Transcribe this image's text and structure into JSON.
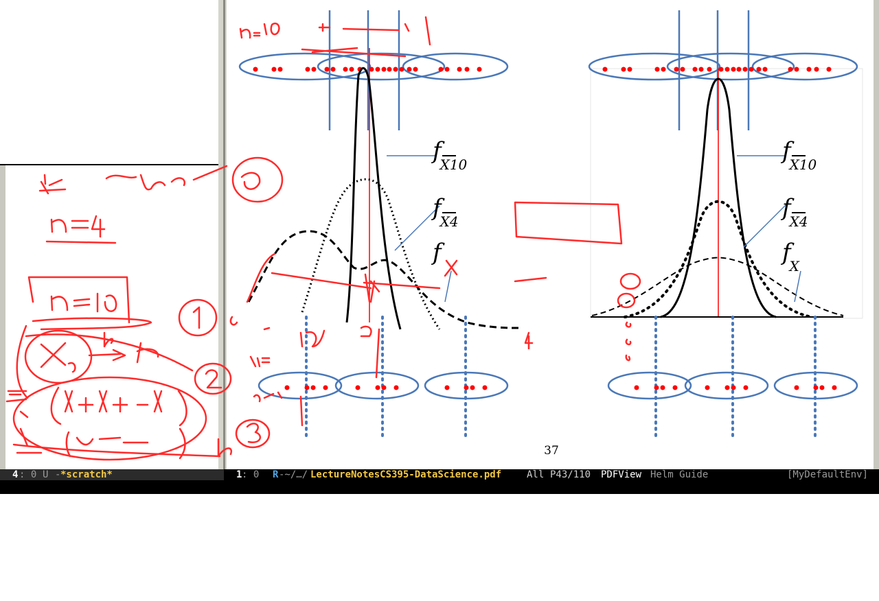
{
  "figure": {
    "page_number": "37",
    "left_panel_labels": [
      {
        "f": "f",
        "sub": "X10"
      },
      {
        "f": "f",
        "sub": "X4"
      },
      {
        "f": "f",
        "sub": ""
      }
    ],
    "right_panel_labels": [
      {
        "f": "f",
        "sub": "X10"
      },
      {
        "f": "f",
        "sub": "X4"
      },
      {
        "f": "f",
        "sub": "X"
      }
    ]
  },
  "modeline": {
    "left": {
      "window_number": "4",
      "line": ": 0",
      "state": "U",
      "dash": "-",
      "buffer_name": "*scratch*"
    },
    "right": {
      "window_number": "1",
      "line": ": 0",
      "remote": "R",
      "dir": "-~/…/",
      "file_name": "LectureNotesCS395-DataScience.pdf",
      "position": "All",
      "page": "P43/110",
      "major_mode": "PDFView",
      "minor_modes": "Helm Guide",
      "env": "[MyDefaultEnv]"
    }
  },
  "colors": {
    "annotation_red": "#ff2b2b",
    "ellipse_blue": "#4a78b8",
    "modeline_file": "#f2c744",
    "modeline_remote": "#4fa3e0",
    "point_red": "#ff0000"
  }
}
